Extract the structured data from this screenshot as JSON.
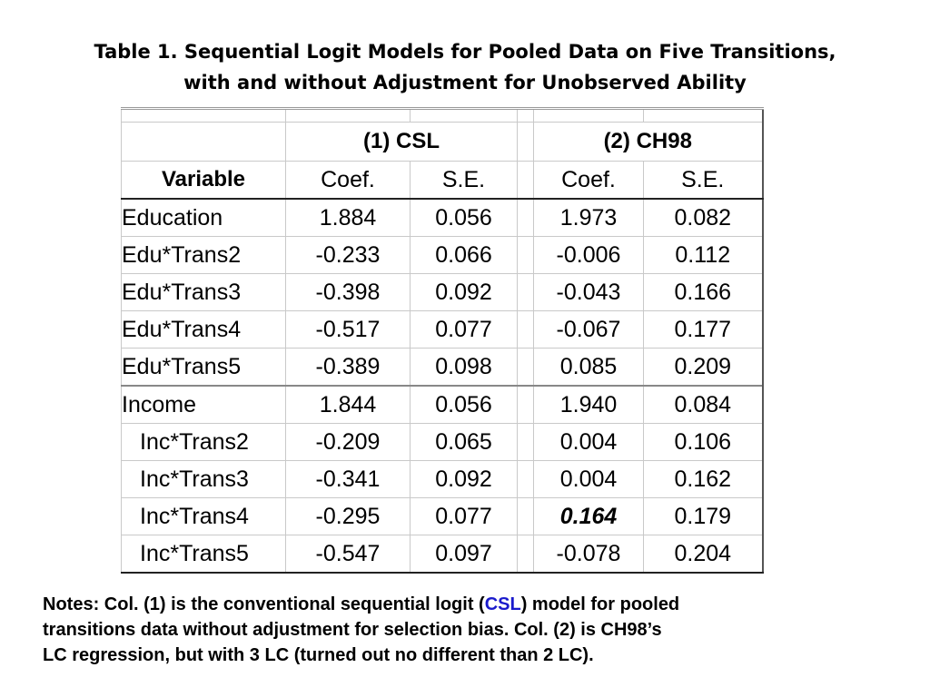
{
  "title": {
    "line1": "Table 1. Sequential Logit Models for Pooled Data on Five Transitions,",
    "line2": "with and without Adjustment for Unobserved Ability"
  },
  "table": {
    "group_headers": [
      "(1) CSL",
      "(2) CH98"
    ],
    "col_headers": {
      "variable": "Variable",
      "coef": "Coef.",
      "se": "S.E."
    },
    "rows": [
      {
        "label": "Education",
        "csl_coef": "1.884",
        "csl_se": "0.056",
        "ch98_coef": "1.973",
        "ch98_se": "0.082"
      },
      {
        "label": "Edu*Trans2",
        "csl_coef": "-0.233",
        "csl_se": "0.066",
        "ch98_coef": "-0.006",
        "ch98_se": "0.112"
      },
      {
        "label": "Edu*Trans3",
        "csl_coef": "-0.398",
        "csl_se": "0.092",
        "ch98_coef": "-0.043",
        "ch98_se": "0.166"
      },
      {
        "label": "Edu*Trans4",
        "csl_coef": "-0.517",
        "csl_se": "0.077",
        "ch98_coef": "-0.067",
        "ch98_se": "0.177"
      },
      {
        "label": "Edu*Trans5",
        "csl_coef": "-0.389",
        "csl_se": "0.098",
        "ch98_coef": "0.085",
        "ch98_se": "0.209"
      },
      {
        "label": "Income",
        "csl_coef": "1.844",
        "csl_se": "0.056",
        "ch98_coef": "1.940",
        "ch98_se": "0.084"
      },
      {
        "label": "Inc*Trans2",
        "csl_coef": "-0.209",
        "csl_se": "0.065",
        "ch98_coef": "0.004",
        "ch98_se": "0.106"
      },
      {
        "label": "Inc*Trans3",
        "csl_coef": "-0.341",
        "csl_se": "0.092",
        "ch98_coef": "0.004",
        "ch98_se": "0.162"
      },
      {
        "label": "Inc*Trans4",
        "csl_coef": "-0.295",
        "csl_se": "0.077",
        "ch98_coef": "0.164",
        "ch98_se": "0.179"
      },
      {
        "label": "Inc*Trans5",
        "csl_coef": "-0.547",
        "csl_se": "0.097",
        "ch98_coef": "-0.078",
        "ch98_se": "0.204"
      }
    ]
  },
  "notes": {
    "line1_before": "Notes:  Col. (1) is the conventional sequential logit (",
    "line1_highlight": "CSL",
    "line1_after": ") model for pooled",
    "line2": "transitions data without adjustment for selection bias. Col. (2) is CH98’s",
    "line3": "LC regression, but with 3 LC (turned out no different than 2 LC).",
    "highlight_color": "#1a1acc"
  }
}
